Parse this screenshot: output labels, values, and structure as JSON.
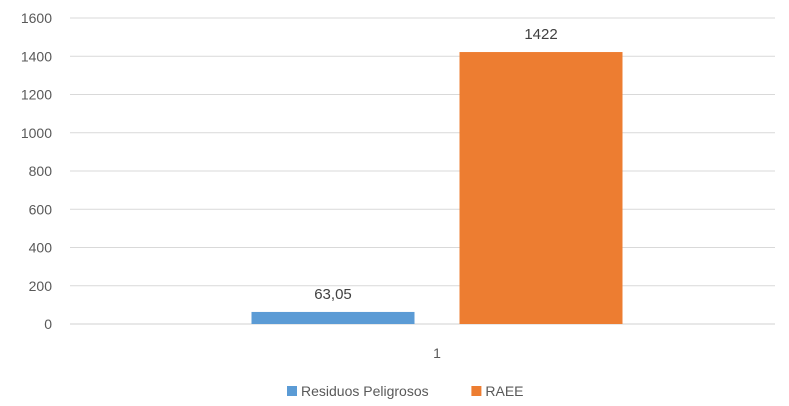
{
  "chart_data": {
    "type": "bar",
    "categories": [
      "1"
    ],
    "series": [
      {
        "name": "Residuos Peligrosos",
        "values": [
          63.05
        ],
        "label": "63,05",
        "color": "#5B9BD5"
      },
      {
        "name": "RAEE",
        "values": [
          1422
        ],
        "label": "1422",
        "color": "#ED7D31"
      }
    ],
    "ylim": [
      0,
      1600
    ],
    "yticks": [
      0,
      200,
      400,
      600,
      800,
      1000,
      1200,
      1400,
      1600
    ],
    "grid": true,
    "legend_position": "bottom"
  }
}
